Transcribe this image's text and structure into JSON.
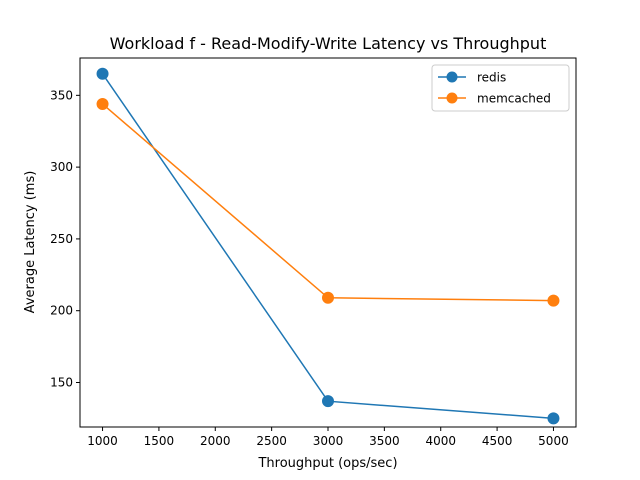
{
  "chart_data": {
    "type": "line",
    "title": "Workload f - Read-Modify-Write Latency vs Throughput",
    "xlabel": "Throughput (ops/sec)",
    "ylabel": "Average Latency (ms)",
    "x": [
      1000,
      3000,
      5000
    ],
    "xlim": [
      800,
      5200
    ],
    "ylim": [
      119,
      376
    ],
    "xticks": [
      1000,
      1500,
      2000,
      2500,
      3000,
      3500,
      4000,
      4500,
      5000
    ],
    "yticks": [
      150,
      200,
      250,
      300,
      350
    ],
    "grid": false,
    "legend_position": "upper right",
    "series": [
      {
        "name": "redis",
        "color": "#1f77b4",
        "values": [
          365,
          137,
          125
        ]
      },
      {
        "name": "memcached",
        "color": "#ff7f0e",
        "values": [
          344,
          209,
          207
        ]
      }
    ]
  }
}
